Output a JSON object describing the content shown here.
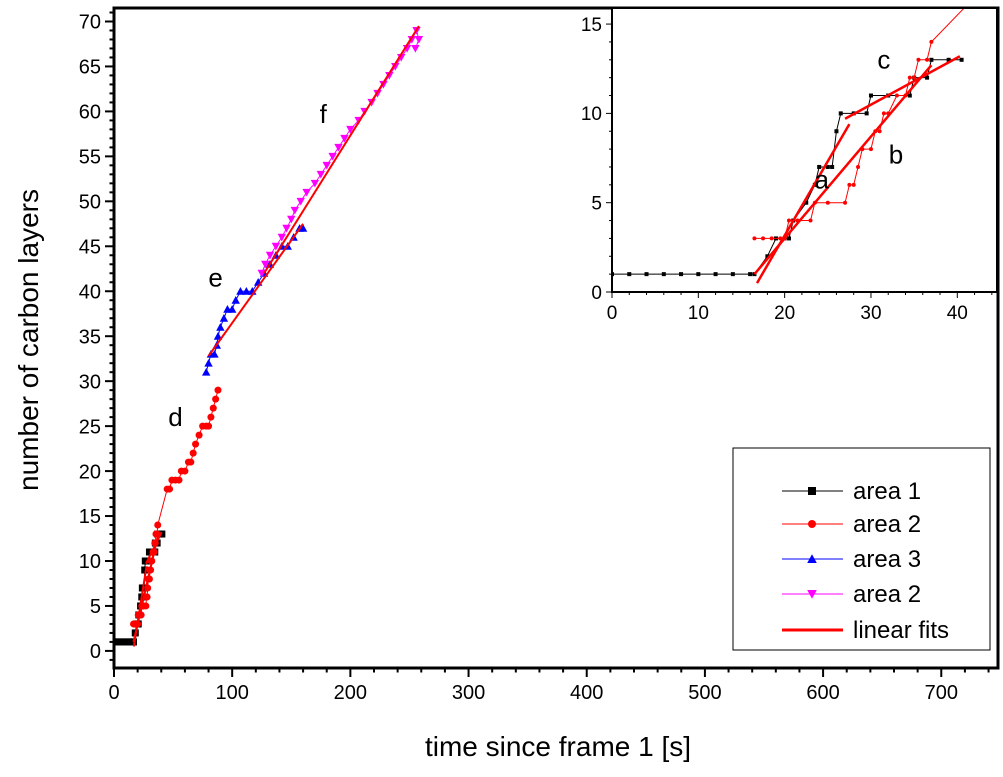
{
  "chart_data": [
    {
      "type": "scatter",
      "id": "main",
      "xlabel": "time since frame 1 [s]",
      "ylabel": "number of carbon layers",
      "xlim": [
        0,
        748
      ],
      "ylim": [
        -1.9,
        71.5
      ],
      "xticks": [
        0,
        100,
        200,
        300,
        400,
        500,
        600,
        700
      ],
      "yticks": [
        0,
        5,
        10,
        15,
        20,
        25,
        30,
        35,
        40,
        45,
        50,
        55,
        60,
        65,
        70
      ],
      "grid": false,
      "legend_position": "bottom-right",
      "series": [
        {
          "name": "area 1",
          "color": "#000000",
          "marker": "square",
          "points": [
            [
              0,
              1
            ],
            [
              2,
              1
            ],
            [
              4,
              1
            ],
            [
              6,
              1
            ],
            [
              8,
              1
            ],
            [
              10,
              1
            ],
            [
              12,
              1
            ],
            [
              14,
              1
            ],
            [
              16,
              1
            ],
            [
              16.5,
              1
            ],
            [
              18,
              2
            ],
            [
              19,
              3
            ],
            [
              20,
              3
            ],
            [
              20.5,
              3
            ],
            [
              21,
              4
            ],
            [
              22.5,
              5
            ],
            [
              23.5,
              6
            ],
            [
              24,
              7
            ],
            [
              25,
              7
            ],
            [
              25.5,
              7
            ],
            [
              26,
              9
            ],
            [
              26.5,
              10
            ],
            [
              28,
              10
            ],
            [
              29.5,
              10
            ],
            [
              30,
              11
            ],
            [
              32,
              11
            ],
            [
              34.5,
              11
            ],
            [
              35,
              12
            ],
            [
              36.5,
              12
            ],
            [
              37,
              13
            ],
            [
              39,
              13
            ],
            [
              40.5,
              13
            ]
          ]
        },
        {
          "name": "area 2",
          "color": "#ff0000",
          "marker": "circle",
          "points": [
            [
              16.5,
              3
            ],
            [
              17.5,
              3
            ],
            [
              18.5,
              3
            ],
            [
              19.5,
              3
            ],
            [
              20,
              3
            ],
            [
              20.5,
              4
            ],
            [
              21.5,
              4
            ],
            [
              23,
              4
            ],
            [
              23.5,
              5
            ],
            [
              25,
              5
            ],
            [
              27,
              5
            ],
            [
              27.5,
              6
            ],
            [
              28,
              6
            ],
            [
              28.5,
              7
            ],
            [
              29,
              8
            ],
            [
              30,
              8
            ],
            [
              30.5,
              9
            ],
            [
              31,
              9
            ],
            [
              31.5,
              10
            ],
            [
              32,
              10
            ],
            [
              33,
              11
            ],
            [
              34,
              11
            ],
            [
              34.5,
              12
            ],
            [
              35,
              12
            ],
            [
              35.5,
              13
            ],
            [
              36.5,
              13
            ],
            [
              37,
              14
            ],
            [
              45,
              18
            ],
            [
              47,
              18
            ],
            [
              49,
              19
            ],
            [
              52,
              19
            ],
            [
              55,
              19
            ],
            [
              57,
              20
            ],
            [
              60,
              20
            ],
            [
              63,
              21
            ],
            [
              65,
              21
            ],
            [
              67,
              22
            ],
            [
              69,
              23
            ],
            [
              72,
              24
            ],
            [
              75,
              25
            ],
            [
              78,
              25
            ],
            [
              80,
              25
            ],
            [
              82,
              26
            ],
            [
              84,
              27
            ],
            [
              86,
              28
            ],
            [
              88,
              29
            ]
          ]
        },
        {
          "name": "area 3",
          "color": "#0000ff",
          "marker": "triangle-up",
          "points": [
            [
              78,
              31
            ],
            [
              80,
              32
            ],
            [
              82,
              33
            ],
            [
              85,
              33
            ],
            [
              87,
              34
            ],
            [
              88,
              35
            ],
            [
              90,
              36
            ],
            [
              93,
              37
            ],
            [
              96,
              38
            ],
            [
              100,
              38
            ],
            [
              103,
              39
            ],
            [
              107,
              40
            ],
            [
              112,
              40
            ],
            [
              117,
              40
            ],
            [
              122,
              41
            ],
            [
              127,
              42
            ],
            [
              132,
              43
            ],
            [
              137,
              44
            ],
            [
              142,
              45
            ],
            [
              147,
              45
            ],
            [
              152,
              46
            ],
            [
              157,
              47
            ],
            [
              160,
              47
            ]
          ]
        },
        {
          "name": "area 2",
          "color": "#ff00ff",
          "marker": "triangle-down",
          "points": [
            [
              125,
              42
            ],
            [
              128,
              43
            ],
            [
              132,
              44
            ],
            [
              137,
              45
            ],
            [
              142,
              46
            ],
            [
              146,
              47
            ],
            [
              150,
              48
            ],
            [
              153,
              49
            ],
            [
              158,
              50
            ],
            [
              163,
              51
            ],
            [
              170,
              52
            ],
            [
              175,
              53
            ],
            [
              180,
              54
            ],
            [
              185,
              55
            ],
            [
              190,
              56
            ],
            [
              195,
              57
            ],
            [
              200,
              58
            ],
            [
              207,
              59
            ],
            [
              212,
              60
            ],
            [
              218,
              61
            ],
            [
              223,
              62
            ],
            [
              228,
              63
            ],
            [
              233,
              64
            ],
            [
              238,
              65
            ],
            [
              243,
              66
            ],
            [
              248,
              67
            ],
            [
              252,
              68
            ],
            [
              256,
              69
            ],
            [
              258,
              68
            ],
            [
              255,
              67
            ]
          ]
        }
      ],
      "fits": [
        {
          "name": "linear fits",
          "color": "#ff0000",
          "from": [
            16.8,
            0.5
          ],
          "to": [
            27.5,
            9.4
          ]
        },
        {
          "name": "linear fits",
          "color": "#ff0000",
          "from": [
            16.5,
            1.0
          ],
          "to": [
            37,
            12.7
          ]
        },
        {
          "name": "linear fits",
          "color": "#ff0000",
          "from": [
            27,
            9.7
          ],
          "to": [
            40.3,
            13.2
          ]
        },
        {
          "name": "linear fits",
          "color": "#ff0000",
          "from": [
            80,
            32.8
          ],
          "to": [
            160,
            47.5
          ]
        },
        {
          "name": "linear fits",
          "color": "#ff0000",
          "from": [
            127,
            42
          ],
          "to": [
            258,
            69.5
          ]
        }
      ],
      "annotations": [
        {
          "text": "d",
          "x": 52,
          "y": 25
        },
        {
          "text": "e",
          "x": 86,
          "y": 40.5
        },
        {
          "text": "f",
          "x": 177,
          "y": 58.7
        }
      ],
      "legend": [
        "area 1",
        "area 2",
        "area 3",
        "area 2",
        "linear fits"
      ]
    },
    {
      "type": "scatter",
      "id": "inset",
      "xlim": [
        0,
        44.6
      ],
      "ylim": [
        0,
        15.9
      ],
      "xticks": [
        0,
        10,
        20,
        30,
        40
      ],
      "yticks": [
        0,
        5,
        10,
        15
      ],
      "grid": false,
      "uses_series_from": "main",
      "annotations": [
        {
          "text": "a",
          "x": 24.3,
          "y": 5.8
        },
        {
          "text": "b",
          "x": 32.9,
          "y": 7.2
        },
        {
          "text": "c",
          "x": 31.5,
          "y": 12.5
        }
      ]
    }
  ]
}
